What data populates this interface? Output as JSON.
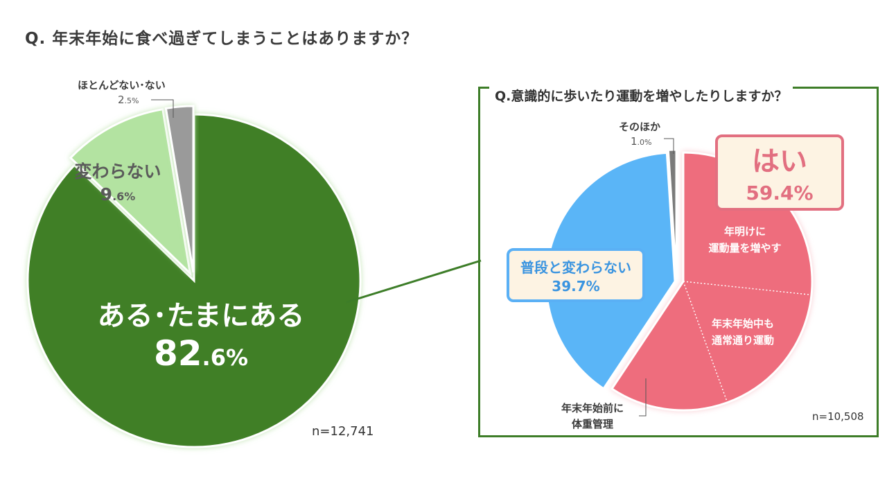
{
  "title": "Q. 年末年始に食べ過ぎてしまうことはありますか？",
  "colors": {
    "dark_green": "#3f7f26",
    "light_green": "#b3e3a1",
    "gray": "#9a9a9a",
    "pink": "#ee6d7d",
    "blue": "#5ab5f7",
    "dark_gray": "#7a7a7a",
    "box_green": "#3d7d28"
  },
  "chart_data": [
    {
      "type": "pie",
      "title": "Q. 年末年始に食べ過ぎてしまうことはありますか？",
      "n_label": "n=12,741",
      "slices": [
        {
          "label": "ある･たまにある",
          "value": 82.6,
          "int": "82",
          "dec": ".6%"
        },
        {
          "label": "変わらない",
          "value": 9.6,
          "int": "9",
          "dec": ".6%"
        },
        {
          "label": "ほとんどない･ない",
          "value": 2.5,
          "int": "2",
          "dec": ".5%"
        }
      ]
    },
    {
      "type": "pie",
      "title": "Q.意識的に歩いたり運動を増やしたりしますか？",
      "n_label": "n=10,508",
      "slices": [
        {
          "label": "はい",
          "value": 59.4,
          "display": "59.4%",
          "subsegments": [
            {
              "label_lines": [
                "年明けに",
                "運動量を増やす"
              ]
            },
            {
              "label_lines": [
                "年末年始中も",
                "通常通り運動"
              ]
            },
            {
              "label_lines": [
                "年末年始前に",
                "体重管理"
              ]
            }
          ]
        },
        {
          "label": "普段と変わらない",
          "value": 39.7,
          "display": "39.7%"
        },
        {
          "label": "そのほか",
          "value": 1.0,
          "int": "1",
          "dec": ".0%"
        }
      ]
    }
  ]
}
